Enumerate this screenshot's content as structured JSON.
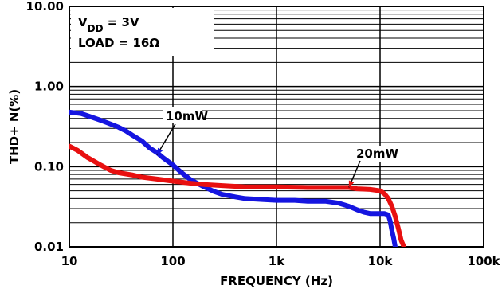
{
  "chart_data": {
    "type": "line",
    "xscale": "log",
    "yscale": "log",
    "xlim": [
      10,
      100000
    ],
    "ylim": [
      0.01,
      10
    ],
    "xlabel": "FREQUENCY (Hz)",
    "ylabel": "THD+ N(%)",
    "x_ticks": [
      "10",
      "100",
      "1k",
      "10k",
      "100k"
    ],
    "y_ticks": [
      "0.01",
      "0.10",
      "1.00",
      "10.00"
    ],
    "grid": true,
    "conditions": {
      "vdd_prefix": "V",
      "vdd_sub": "DD",
      "vdd_value": " = 3V",
      "load": "LOAD = 16Ω"
    },
    "series": [
      {
        "name": "10mW",
        "color": "#1515e0",
        "points": [
          [
            10,
            0.48
          ],
          [
            13,
            0.46
          ],
          [
            16,
            0.42
          ],
          [
            20,
            0.38
          ],
          [
            25,
            0.34
          ],
          [
            30,
            0.31
          ],
          [
            35,
            0.28
          ],
          [
            40,
            0.25
          ],
          [
            50,
            0.21
          ],
          [
            60,
            0.17
          ],
          [
            70,
            0.15
          ],
          [
            80,
            0.13
          ],
          [
            100,
            0.105
          ],
          [
            120,
            0.085
          ],
          [
            150,
            0.068
          ],
          [
            200,
            0.056
          ],
          [
            250,
            0.049
          ],
          [
            300,
            0.045
          ],
          [
            400,
            0.042
          ],
          [
            500,
            0.04
          ],
          [
            700,
            0.039
          ],
          [
            1000,
            0.038
          ],
          [
            1500,
            0.038
          ],
          [
            2000,
            0.037
          ],
          [
            3000,
            0.037
          ],
          [
            4000,
            0.035
          ],
          [
            5000,
            0.032
          ],
          [
            6000,
            0.029
          ],
          [
            7000,
            0.027
          ],
          [
            8000,
            0.026
          ],
          [
            9000,
            0.026
          ],
          [
            10000,
            0.026
          ],
          [
            11000,
            0.026
          ],
          [
            12000,
            0.025
          ],
          [
            12500,
            0.021
          ],
          [
            13000,
            0.016
          ],
          [
            13500,
            0.013
          ],
          [
            14000,
            0.01
          ]
        ]
      },
      {
        "name": "20mW",
        "color": "#e81010",
        "points": [
          [
            10,
            0.18
          ],
          [
            12,
            0.16
          ],
          [
            15,
            0.13
          ],
          [
            20,
            0.105
          ],
          [
            25,
            0.09
          ],
          [
            30,
            0.084
          ],
          [
            40,
            0.079
          ],
          [
            50,
            0.074
          ],
          [
            70,
            0.07
          ],
          [
            100,
            0.066
          ],
          [
            150,
            0.062
          ],
          [
            200,
            0.06
          ],
          [
            300,
            0.058
          ],
          [
            500,
            0.056
          ],
          [
            700,
            0.056
          ],
          [
            1000,
            0.056
          ],
          [
            2000,
            0.055
          ],
          [
            3000,
            0.055
          ],
          [
            4000,
            0.055
          ],
          [
            5000,
            0.055
          ],
          [
            6000,
            0.053
          ],
          [
            8000,
            0.052
          ],
          [
            10000,
            0.05
          ],
          [
            11000,
            0.046
          ],
          [
            12000,
            0.04
          ],
          [
            13000,
            0.032
          ],
          [
            14000,
            0.024
          ],
          [
            15000,
            0.017
          ],
          [
            16000,
            0.012
          ],
          [
            17000,
            0.01
          ]
        ]
      }
    ],
    "annotations": [
      {
        "text": "10mW",
        "series": 0,
        "arrow_to": [
          70,
          0.14
        ]
      },
      {
        "text": "20mW",
        "series": 1,
        "arrow_to": [
          5000,
          0.055
        ]
      }
    ]
  }
}
